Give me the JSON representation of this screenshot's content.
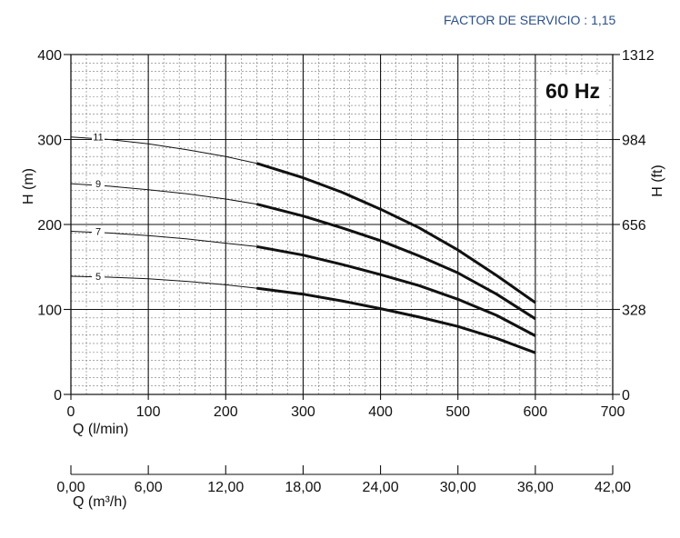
{
  "header": {
    "service_factor": "FACTOR DE SERVICIO : 1,15",
    "frequency_label": "60 Hz"
  },
  "chart_data": {
    "type": "line",
    "title": "",
    "xlabel": "Q (l/min)",
    "ylabel": "H (m)",
    "ylabel_right": "H (ft)",
    "xlabel_secondary": "Q (m³/h)",
    "xlim": [
      0,
      700
    ],
    "ylim": [
      0,
      400
    ],
    "x_ticks": [
      0,
      100,
      200,
      300,
      400,
      500,
      600,
      700
    ],
    "x_tick_labels": [
      "0",
      "100",
      "200",
      "300",
      "400",
      "500",
      "600",
      "700"
    ],
    "y_ticks": [
      0,
      100,
      200,
      300,
      400
    ],
    "y_tick_labels": [
      "0",
      "100",
      "200",
      "300",
      "400"
    ],
    "y_right_ticks": [
      0,
      100,
      200,
      300,
      400
    ],
    "y_right_tick_labels": [
      "0",
      "328",
      "656",
      "984",
      "1312"
    ],
    "x_secondary_ticks": [
      0,
      100,
      200,
      300,
      400,
      500,
      600,
      700
    ],
    "x_secondary_tick_labels": [
      "0,00",
      "6,00",
      "12,00",
      "18,00",
      "24,00",
      "30,00",
      "36,00",
      "42,00"
    ],
    "grid": true,
    "operating_range": [
      240,
      600
    ],
    "series": [
      {
        "name": "11",
        "x": [
          0,
          50,
          100,
          150,
          200,
          240,
          300,
          350,
          400,
          450,
          500,
          550,
          600
        ],
        "y": [
          303,
          300,
          295,
          288,
          280,
          272,
          255,
          238,
          218,
          196,
          170,
          140,
          108
        ]
      },
      {
        "name": "9",
        "x": [
          0,
          50,
          100,
          150,
          200,
          240,
          300,
          350,
          400,
          450,
          500,
          550,
          600
        ],
        "y": [
          248,
          245,
          241,
          236,
          230,
          224,
          210,
          196,
          181,
          163,
          143,
          118,
          89
        ]
      },
      {
        "name": "7",
        "x": [
          0,
          50,
          100,
          150,
          200,
          240,
          300,
          350,
          400,
          450,
          500,
          550,
          600
        ],
        "y": [
          192,
          190,
          187,
          183,
          178,
          174,
          164,
          153,
          141,
          128,
          112,
          93,
          69
        ]
      },
      {
        "name": "5",
        "x": [
          0,
          50,
          100,
          150,
          200,
          240,
          300,
          350,
          400,
          450,
          500,
          550,
          600
        ],
        "y": [
          139,
          138,
          136,
          133,
          129,
          125,
          118,
          110,
          101,
          91,
          80,
          66,
          49
        ]
      }
    ]
  }
}
